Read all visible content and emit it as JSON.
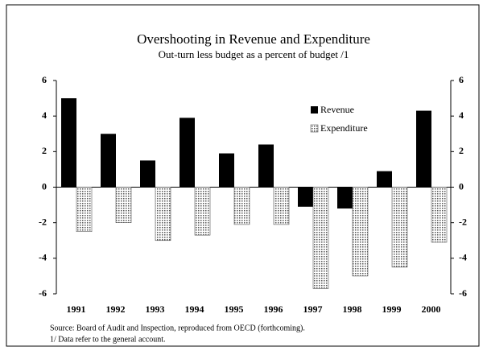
{
  "chart_data": {
    "type": "bar",
    "title": "Overshooting in Revenue and Expenditure",
    "subtitle": "Out-turn less budget as a percent of budget /1",
    "categories": [
      "1991",
      "1992",
      "1993",
      "1994",
      "1995",
      "1996",
      "1997",
      "1998",
      "1999",
      "2000"
    ],
    "series": [
      {
        "name": "Revenue",
        "color": "#000000",
        "values": [
          5.0,
          3.0,
          1.5,
          3.9,
          1.9,
          2.4,
          -1.1,
          -1.2,
          0.9,
          4.3
        ]
      },
      {
        "name": "Expenditure",
        "color": "#555555",
        "values": [
          -2.5,
          -2.0,
          -3.0,
          -2.7,
          -2.1,
          -2.1,
          -5.7,
          -5.0,
          -4.5,
          -3.1
        ]
      }
    ],
    "ylim": [
      -6,
      6
    ],
    "yticks": [
      -6,
      -4,
      -2,
      0,
      2,
      4,
      6
    ],
    "y2lim": [
      -6,
      6
    ],
    "y2ticks": [
      -6,
      -4,
      -2,
      0,
      2,
      4,
      6
    ],
    "legend": "upper right",
    "notes": [
      "Source: Board of Audit and Inspection, reproduced from OECD (forthcoming).",
      "1/ Data refer to the general account."
    ]
  }
}
